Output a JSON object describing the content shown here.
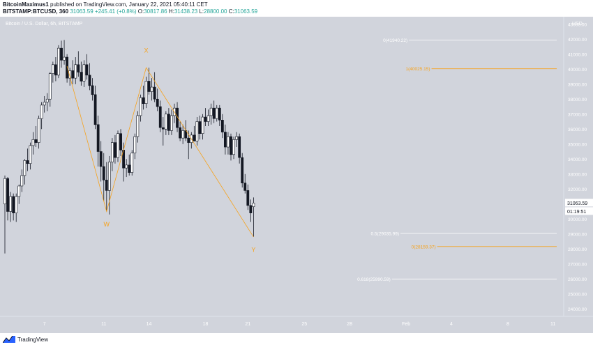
{
  "header": {
    "author": "BitcoinMaximus1",
    "published_text": " published on TradingView.com, January 22, 2021 05:40:11 CET",
    "symbol": "BITSTAMP:BTCUSD, 360",
    "price": "31063.59",
    "change": "+245.41 (+0.8%)",
    "o_label": "O:",
    "o_value": "30817.86",
    "h_label": "H:",
    "h_value": "31438.23",
    "l_label": "L:",
    "l_value": "28800.00",
    "c_label": "C:",
    "c_value": "31063.59"
  },
  "footer": {
    "brand": "TradingView"
  },
  "colors": {
    "background": "#d1d4dc",
    "bull_body": "#ffffff",
    "bear_body": "#131722",
    "wick": "#131722",
    "orange": "#f7a21b",
    "fib_white": "#ffffff",
    "axis_text": "#ffffff"
  },
  "chart_data": {
    "type": "candlestick",
    "title": "Bitcoin / U.S. Dollar, 6h, BITSTAMP",
    "currency_label": "USD",
    "ylim": [
      23500,
      43500
    ],
    "y_ticks": [
      24000,
      25000,
      26000,
      27000,
      28000,
      29000,
      30000,
      31000,
      32000,
      33000,
      34000,
      35000,
      36000,
      37000,
      38000,
      39000,
      40000,
      41000,
      42000,
      43000
    ],
    "x_ticks": [
      {
        "i": 14,
        "label": "7"
      },
      {
        "i": 35,
        "label": "11"
      },
      {
        "i": 51,
        "label": "14"
      },
      {
        "i": 71,
        "label": "18"
      },
      {
        "i": 86,
        "label": "21"
      },
      {
        "i": 106,
        "label": "25"
      },
      {
        "i": 122,
        "label": "28"
      },
      {
        "i": 142,
        "label": "Feb"
      },
      {
        "i": 158,
        "label": "4"
      },
      {
        "i": 178,
        "label": "8"
      },
      {
        "i": 194,
        "label": "11"
      }
    ],
    "last_price": "31063.59",
    "countdown": "01:19:51",
    "candles": [
      [
        31000,
        32900,
        27700,
        32700
      ],
      [
        32700,
        32800,
        29900,
        30500
      ],
      [
        30500,
        31800,
        29800,
        31500
      ],
      [
        31500,
        31700,
        29900,
        30400
      ],
      [
        30400,
        31700,
        29800,
        31500
      ],
      [
        31500,
        32300,
        31000,
        32200
      ],
      [
        32200,
        33300,
        31800,
        32900
      ],
      [
        32900,
        34000,
        32300,
        33900
      ],
      [
        33900,
        34700,
        33200,
        33700
      ],
      [
        33700,
        35100,
        33300,
        34900
      ],
      [
        34900,
        35800,
        34300,
        35300
      ],
      [
        35300,
        36200,
        34800,
        35100
      ],
      [
        35100,
        36900,
        34700,
        36700
      ],
      [
        36700,
        37800,
        36000,
        37600
      ],
      [
        37600,
        38200,
        37100,
        37800
      ],
      [
        37800,
        38400,
        37200,
        38000
      ],
      [
        38000,
        39800,
        37500,
        39700
      ],
      [
        39700,
        40500,
        39100,
        40300
      ],
      [
        40300,
        40800,
        39200,
        39600
      ],
      [
        39600,
        41600,
        39400,
        41400
      ],
      [
        41400,
        41900,
        40100,
        40600
      ],
      [
        40600,
        41950,
        40300,
        40800
      ],
      [
        40800,
        41000,
        39100,
        39400
      ],
      [
        39400,
        40100,
        38900,
        39900
      ],
      [
        39900,
        40600,
        39000,
        39400
      ],
      [
        39400,
        40800,
        39000,
        40300
      ],
      [
        40300,
        41200,
        39500,
        39800
      ],
      [
        39800,
        40500,
        38900,
        39200
      ],
      [
        39200,
        40600,
        38800,
        40300
      ],
      [
        40300,
        41000,
        39300,
        39600
      ],
      [
        39600,
        40400,
        38600,
        38900
      ],
      [
        38900,
        39400,
        37900,
        38300
      ],
      [
        38300,
        38900,
        36000,
        36300
      ],
      [
        36300,
        36900,
        33500,
        34500
      ],
      [
        34500,
        35200,
        32500,
        33500
      ],
      [
        33500,
        34400,
        31200,
        32600
      ],
      [
        32600,
        33800,
        30500,
        31900
      ],
      [
        31900,
        34200,
        30300,
        33800
      ],
      [
        33800,
        35400,
        33200,
        35100
      ],
      [
        35100,
        35600,
        33700,
        34100
      ],
      [
        34100,
        35900,
        33800,
        35700
      ],
      [
        35700,
        36000,
        34200,
        34600
      ],
      [
        34600,
        35100,
        32500,
        33400
      ],
      [
        33400,
        34000,
        32800,
        33600
      ],
      [
        33600,
        34300,
        32900,
        33100
      ],
      [
        33100,
        34600,
        32900,
        34400
      ],
      [
        34400,
        35700,
        34000,
        35500
      ],
      [
        35500,
        37200,
        35100,
        36900
      ],
      [
        36900,
        38300,
        36500,
        38100
      ],
      [
        38100,
        38900,
        37300,
        37700
      ],
      [
        37700,
        39500,
        37400,
        39200
      ],
      [
        39200,
        40100,
        38300,
        38500
      ],
      [
        38500,
        39400,
        37900,
        38800
      ],
      [
        38800,
        39800,
        37800,
        38000
      ],
      [
        38000,
        38700,
        37200,
        37500
      ],
      [
        37500,
        37900,
        35800,
        36100
      ],
      [
        36100,
        36800,
        34900,
        36000
      ],
      [
        36000,
        37200,
        35600,
        37000
      ],
      [
        37000,
        37400,
        35600,
        35900
      ],
      [
        35900,
        37300,
        35600,
        36900
      ],
      [
        36900,
        37700,
        36400,
        37400
      ],
      [
        37400,
        37800,
        35800,
        36100
      ],
      [
        36100,
        36500,
        35200,
        35400
      ],
      [
        35400,
        36300,
        35000,
        35900
      ],
      [
        35900,
        36600,
        35200,
        35400
      ],
      [
        35400,
        35900,
        34000,
        35100
      ],
      [
        35100,
        35800,
        34700,
        35600
      ],
      [
        35600,
        36200,
        35200,
        35200
      ],
      [
        35200,
        36800,
        34900,
        36500
      ],
      [
        36500,
        36900,
        35300,
        35700
      ],
      [
        35700,
        37000,
        35300,
        36800
      ],
      [
        36800,
        37400,
        36200,
        36500
      ],
      [
        36500,
        37300,
        36200,
        36900
      ],
      [
        36900,
        37700,
        36300,
        37400
      ],
      [
        37400,
        37900,
        36400,
        36700
      ],
      [
        36700,
        37600,
        36500,
        37400
      ],
      [
        37400,
        37600,
        36200,
        36600
      ],
      [
        36600,
        37000,
        35400,
        35800
      ],
      [
        35800,
        36300,
        34300,
        34800
      ],
      [
        34800,
        35800,
        34300,
        35500
      ],
      [
        35500,
        35700,
        33900,
        34300
      ],
      [
        34300,
        35500,
        34000,
        35300
      ],
      [
        35300,
        35800,
        34800,
        35500
      ],
      [
        35500,
        35700,
        33700,
        34100
      ],
      [
        34100,
        34400,
        32100,
        32400
      ],
      [
        32400,
        33000,
        31700,
        31900
      ],
      [
        31900,
        32300,
        30600,
        30900
      ],
      [
        30900,
        31300,
        29800,
        30400
      ],
      [
        30817.86,
        31438.23,
        28800,
        31063.59
      ]
    ],
    "waves": [
      {
        "label": "W",
        "i": 36,
        "value": 30500,
        "text_value": 29500
      },
      {
        "label": "X",
        "i": 50,
        "value": 40100,
        "text_value": 41100
      },
      {
        "label": "Y",
        "i": 88,
        "value": 28800,
        "text_value": 27800
      }
    ],
    "wave_path": [
      {
        "i": 22,
        "value": 40200
      },
      {
        "i": 36,
        "value": 30500
      },
      {
        "i": 50,
        "value": 40100
      },
      {
        "i": 88,
        "value": 28800
      }
    ],
    "fib_levels": [
      {
        "label": "0(41940.22)",
        "value": 41940.22,
        "color": "white",
        "from_i": 143
      },
      {
        "label": "1(40025.15)",
        "value": 40025.15,
        "color": "orange",
        "from_i": 151
      },
      {
        "label": "0.5(29035.99)",
        "value": 29035.99,
        "color": "white",
        "from_i": 140
      },
      {
        "label": "0(28159.37)",
        "value": 28159.37,
        "color": "orange",
        "from_i": 153
      },
      {
        "label": "0.618(25990.59)",
        "value": 25990.59,
        "color": "white",
        "from_i": 137
      }
    ]
  }
}
